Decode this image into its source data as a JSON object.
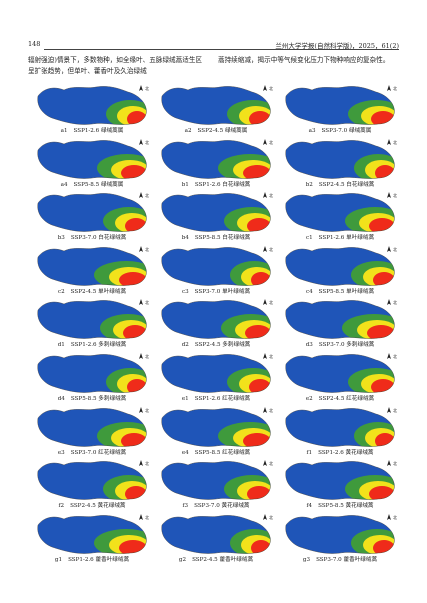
{
  "header": {
    "page_number": "148",
    "journal": "兰州大学学报(自然科学版)，2025，61(2)"
  },
  "intro": {
    "left": "辐射强迫)情景下，多数物种，如全缘叶、五脉绿绒蒿适生区呈扩张趋势，但单叶、藿香叶及久治绿绒",
    "right": "蒿持续缩减，揭示中等气候变化压力下物种响应的复杂性。"
  },
  "north_label": "北",
  "colors": {
    "ocean": "#1f55b8",
    "low": "#3f9a3c",
    "mid": "#f2e21b",
    "high": "#ef2b1a"
  },
  "panels": [
    {
      "label": "a1",
      "caption": "SSP1-2.6 绿绒蒿属"
    },
    {
      "label": "a2",
      "caption": "SSP2-4.5 绿绒蒿属"
    },
    {
      "label": "a3",
      "caption": "SSP3-7.0 绿绒蒿属"
    },
    {
      "label": "a4",
      "caption": "SSP5-8.5 绿绒蒿属"
    },
    {
      "label": "b1",
      "caption": "SSP1-2.6 白花绿绒蒿"
    },
    {
      "label": "b2",
      "caption": "SSP2-4.5 白花绿绒蒿"
    },
    {
      "label": "b3",
      "caption": "SSP3-7.0 白花绿绒蒿"
    },
    {
      "label": "b4",
      "caption": "SSP5-8.5 白花绿绒蒿"
    },
    {
      "label": "c1",
      "caption": "SSP1-2.6 单叶绿绒蒿"
    },
    {
      "label": "c2",
      "caption": "SSP2-4.5 单叶绿绒蒿"
    },
    {
      "label": "c3",
      "caption": "SSP3-7.0 单叶绿绒蒿"
    },
    {
      "label": "c4",
      "caption": "SSP5-8.5 单叶绿绒蒿"
    },
    {
      "label": "d1",
      "caption": "SSP1-2.6 多刺绿绒蒿"
    },
    {
      "label": "d2",
      "caption": "SSP2-4.5 多刺绿绒蒿"
    },
    {
      "label": "d3",
      "caption": "SSP3-7.0 多刺绿绒蒿"
    },
    {
      "label": "d4",
      "caption": "SSP5-8.5 多刺绿绒蒿"
    },
    {
      "label": "e1",
      "caption": "SSP1-2.6 红花绿绒蒿"
    },
    {
      "label": "e2",
      "caption": "SSP2-4.5 红花绿绒蒿"
    },
    {
      "label": "e3",
      "caption": "SSP3-7.0 红花绿绒蒿"
    },
    {
      "label": "e4",
      "caption": "SSP5-8.5 红花绿绒蒿"
    },
    {
      "label": "f1",
      "caption": "SSP1-2.6 黄花绿绒蒿"
    },
    {
      "label": "f2",
      "caption": "SSP2-4.5 黄花绿绒蒿"
    },
    {
      "label": "f3",
      "caption": "SSP3-7.0 黄花绿绒蒿"
    },
    {
      "label": "f4",
      "caption": "SSP5-8.5 黄花绿绒蒿"
    },
    {
      "label": "g1",
      "caption": "SSP1-2.6 藿香叶绿绒蒿"
    },
    {
      "label": "g2",
      "caption": "SSP2-4.5 藿香叶绿绒蒿"
    },
    {
      "label": "g3",
      "caption": "SSP3-7.0 藿香叶绿绒蒿"
    }
  ]
}
